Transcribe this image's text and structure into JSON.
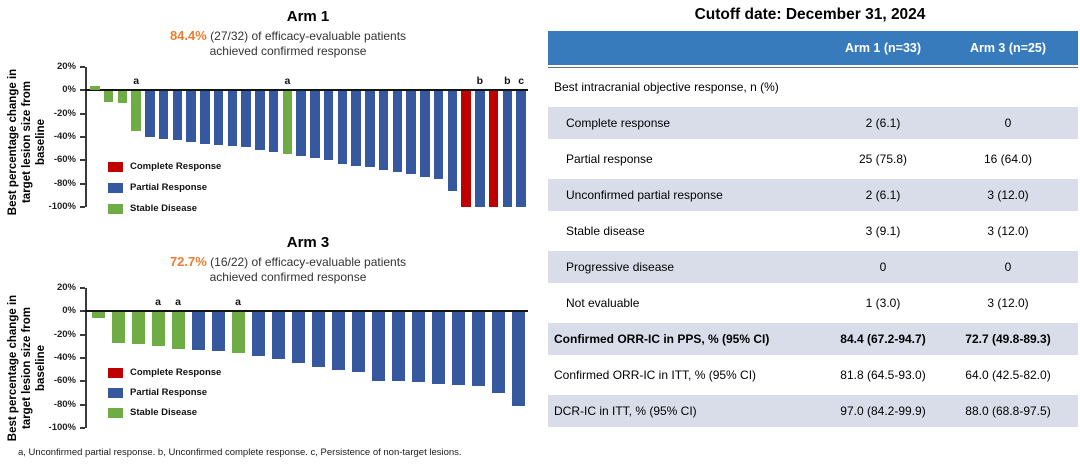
{
  "colors": {
    "complete_response": "#C00000",
    "partial_response": "#35589E",
    "stable_disease": "#6FAC46",
    "highlight_orange": "#ED7D31",
    "table_header_bg": "#377BBD",
    "table_row_shaded": "#D8DDE9"
  },
  "footnote": "a, Unconfirmed partial response. b, Unconfirmed complete response. c, Persistence of non-target lesions.",
  "chart_data": [
    {
      "type": "bar",
      "title": "Arm 1",
      "subtitle_highlight": "84.4%",
      "subtitle_rest": " (27/32) of efficacy-evaluable patients",
      "subtitle_line2": "achieved confirmed response",
      "ylabel": "Best percentage change in target lesion size from baseline",
      "ylabel_lines": [
        "Best percentage change in",
        "target lesion size from",
        "baseline"
      ],
      "ylim": [
        -100,
        20
      ],
      "grid": false,
      "legend_position": "inside-lower-left",
      "yticks": [
        {
          "label": "20%",
          "value": 20
        },
        {
          "label": "0%",
          "value": 0
        },
        {
          "label": "-20%",
          "value": -20
        },
        {
          "label": "-40%",
          "value": -40
        },
        {
          "label": "-60%",
          "value": -60
        },
        {
          "label": "-80%",
          "value": -80
        },
        {
          "label": "-100%",
          "value": -100
        }
      ],
      "legend": [
        {
          "label": "Complete Response",
          "category": "complete_response"
        },
        {
          "label": "Partial Response",
          "category": "partial_response"
        },
        {
          "label": "Stable Disease",
          "category": "stable_disease"
        }
      ],
      "bars": [
        {
          "value": 4,
          "category": "stable_disease"
        },
        {
          "value": -10,
          "category": "stable_disease"
        },
        {
          "value": -11,
          "category": "stable_disease"
        },
        {
          "value": -35,
          "category": "stable_disease",
          "note": "a"
        },
        {
          "value": -40,
          "category": "partial_response"
        },
        {
          "value": -42,
          "category": "partial_response"
        },
        {
          "value": -43,
          "category": "partial_response"
        },
        {
          "value": -44,
          "category": "partial_response"
        },
        {
          "value": -46,
          "category": "partial_response"
        },
        {
          "value": -47,
          "category": "partial_response"
        },
        {
          "value": -48,
          "category": "partial_response"
        },
        {
          "value": -49,
          "category": "partial_response"
        },
        {
          "value": -51,
          "category": "partial_response"
        },
        {
          "value": -53,
          "category": "partial_response"
        },
        {
          "value": -55,
          "category": "stable_disease",
          "note": "a"
        },
        {
          "value": -56,
          "category": "partial_response"
        },
        {
          "value": -58,
          "category": "partial_response"
        },
        {
          "value": -60,
          "category": "partial_response"
        },
        {
          "value": -63,
          "category": "partial_response"
        },
        {
          "value": -65,
          "category": "partial_response"
        },
        {
          "value": -66,
          "category": "partial_response"
        },
        {
          "value": -68,
          "category": "partial_response"
        },
        {
          "value": -70,
          "category": "partial_response"
        },
        {
          "value": -72,
          "category": "partial_response"
        },
        {
          "value": -74,
          "category": "partial_response"
        },
        {
          "value": -76,
          "category": "partial_response"
        },
        {
          "value": -86,
          "category": "partial_response"
        },
        {
          "value": -100,
          "category": "complete_response"
        },
        {
          "value": -100,
          "category": "partial_response",
          "note": "b"
        },
        {
          "value": -100,
          "category": "complete_response"
        },
        {
          "value": -100,
          "category": "partial_response",
          "note": "b"
        },
        {
          "value": -100,
          "category": "partial_response",
          "note": "c"
        }
      ]
    },
    {
      "type": "bar",
      "title": "Arm 3",
      "subtitle_highlight": "72.7%",
      "subtitle_rest": " (16/22) of efficacy-evaluable patients",
      "subtitle_line2": "achieved confirmed response",
      "ylabel": "Best percentage change in target lesion size from baseline",
      "ylabel_lines": [
        "Best percentage change in",
        "target lesion size from",
        "baseline"
      ],
      "ylim": [
        -100,
        20
      ],
      "grid": false,
      "legend_position": "inside-lower-left",
      "yticks": [
        {
          "label": "20%",
          "value": 20
        },
        {
          "label": "0%",
          "value": 0
        },
        {
          "label": "-20%",
          "value": -20
        },
        {
          "label": "-40%",
          "value": -40
        },
        {
          "label": "-60%",
          "value": -60
        },
        {
          "label": "-80%",
          "value": -80
        },
        {
          "label": "-100%",
          "value": -100
        }
      ],
      "legend": [
        {
          "label": "Complete Response",
          "category": "complete_response"
        },
        {
          "label": "Partial Response",
          "category": "partial_response"
        },
        {
          "label": "Stable Disease",
          "category": "stable_disease"
        }
      ],
      "bars": [
        {
          "value": -6,
          "category": "stable_disease"
        },
        {
          "value": -27,
          "category": "stable_disease"
        },
        {
          "value": -28,
          "category": "stable_disease"
        },
        {
          "value": -30,
          "category": "stable_disease",
          "note": "a"
        },
        {
          "value": -32,
          "category": "stable_disease",
          "note": "a"
        },
        {
          "value": -33,
          "category": "partial_response"
        },
        {
          "value": -34,
          "category": "partial_response"
        },
        {
          "value": -36,
          "category": "stable_disease",
          "note": "a"
        },
        {
          "value": -38,
          "category": "partial_response"
        },
        {
          "value": -41,
          "category": "partial_response"
        },
        {
          "value": -44,
          "category": "partial_response"
        },
        {
          "value": -48,
          "category": "partial_response"
        },
        {
          "value": -50,
          "category": "partial_response"
        },
        {
          "value": -52,
          "category": "partial_response"
        },
        {
          "value": -60,
          "category": "partial_response"
        },
        {
          "value": -60,
          "category": "partial_response"
        },
        {
          "value": -61,
          "category": "partial_response"
        },
        {
          "value": -62,
          "category": "partial_response"
        },
        {
          "value": -63,
          "category": "partial_response"
        },
        {
          "value": -64,
          "category": "partial_response"
        },
        {
          "value": -70,
          "category": "partial_response"
        },
        {
          "value": -81,
          "category": "partial_response"
        }
      ]
    }
  ],
  "table": {
    "title": "Cutoff date: December 31, 2024",
    "columns": [
      "",
      "Arm 1 (n=33)",
      "Arm 3 (n=25)"
    ],
    "rows": [
      {
        "label": "Best intracranial objective response, n (%)",
        "arm1": "",
        "arm3": ""
      },
      {
        "label": "Complete response",
        "arm1": "2 (6.1)",
        "arm3": "0",
        "shaded": true,
        "indent": true
      },
      {
        "label": "Partial response",
        "arm1": "25 (75.8)",
        "arm3": "16 (64.0)",
        "indent": true
      },
      {
        "label": "Unconfirmed partial response",
        "arm1": "2 (6.1)",
        "arm3": "3 (12.0)",
        "shaded": true,
        "indent": true
      },
      {
        "label": "Stable disease",
        "arm1": "3 (9.1)",
        "arm3": "3 (12.0)",
        "indent": true
      },
      {
        "label": "Progressive disease",
        "arm1": "0",
        "arm3": "0",
        "shaded": true,
        "indent": true
      },
      {
        "label": "Not evaluable",
        "arm1": "1 (3.0)",
        "arm3": "3 (12.0)",
        "indent": true
      },
      {
        "label": "Confirmed ORR-IC in PPS, % (95% CI)",
        "arm1": "84.4 (67.2-94.7)",
        "arm3": "72.7 (49.8-89.3)",
        "shaded": true,
        "bold": true
      },
      {
        "label": "Confirmed ORR-IC in ITT, % (95% CI)",
        "arm1": "81.8 (64.5-93.0)",
        "arm3": "64.0 (42.5-82.0)"
      },
      {
        "label": "DCR-IC in ITT, % (95% CI)",
        "arm1": "97.0 (84.2-99.9)",
        "arm3": "88.0 (68.8-97.5)",
        "shaded": true
      }
    ]
  }
}
